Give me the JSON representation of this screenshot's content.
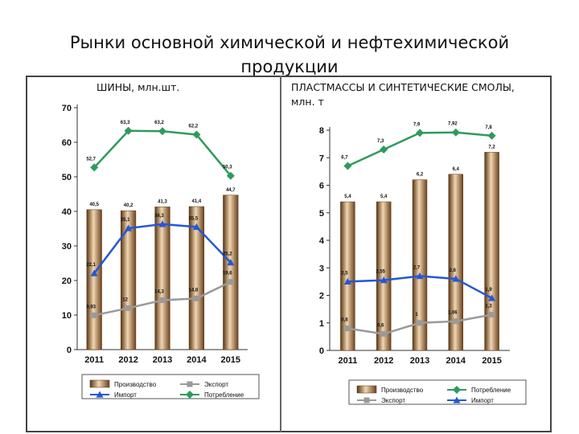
{
  "slide": {
    "title": "Рынки основной химической и нефтехимической продукции"
  },
  "chart_data": [
    {
      "type": "bar",
      "title": "ШИНЫ, млн.шт.",
      "categories": [
        "2011",
        "2012",
        "2013",
        "2014",
        "2015"
      ],
      "ylim": [
        0,
        70
      ],
      "yticks": [
        "0",
        "10",
        "20",
        "30",
        "40",
        "50",
        "60",
        "70"
      ],
      "grid": false,
      "legend_position": "bottom",
      "series": [
        {
          "name": "Производство",
          "kind": "bar",
          "color": "#8c5a2a",
          "values": [
            40.5,
            40.2,
            41.3,
            41.4,
            44.7
          ],
          "labels": [
            "40,5",
            "40,2",
            "41,3",
            "41,4",
            "44,7"
          ]
        },
        {
          "name": "Импорт",
          "kind": "line",
          "color": "#2457d6",
          "values": [
            22.1,
            35.1,
            36.3,
            35.5,
            25.2
          ],
          "labels": [
            "22,1",
            "35,1",
            "36,3",
            "35,5",
            "25,2"
          ]
        },
        {
          "name": "Экспорт",
          "kind": "line",
          "color": "#9a9a9a",
          "values": [
            9.93,
            12,
            14.3,
            14.8,
            19.6
          ],
          "labels": [
            "9,93",
            "12",
            "14,3",
            "14,8",
            "19,6"
          ]
        },
        {
          "name": "Потребление",
          "kind": "line",
          "color": "#2f9a5e",
          "values": [
            52.7,
            63.3,
            63.2,
            62.2,
            50.3
          ],
          "labels": [
            "52,7",
            "63,3",
            "63,2",
            "62,2",
            "50,3"
          ]
        }
      ]
    },
    {
      "type": "bar",
      "title": "ПЛАСТМАССЫ И СИНТЕТИЧЕСКИЕ СМОЛЫ, млн. т",
      "categories": [
        "2011",
        "2012",
        "2013",
        "2014",
        "2015"
      ],
      "ylim": [
        0,
        8
      ],
      "yticks": [
        "0",
        "1",
        "2",
        "3",
        "4",
        "5",
        "6",
        "7",
        "8"
      ],
      "grid": false,
      "legend_position": "bottom",
      "series": [
        {
          "name": "Производство",
          "kind": "bar",
          "color": "#8c5a2a",
          "values": [
            5.4,
            5.4,
            6.2,
            6.4,
            7.2
          ],
          "labels": [
            "5,4",
            "5,4",
            "6,2",
            "6,4",
            "7,2"
          ]
        },
        {
          "name": "Экспорт",
          "kind": "line",
          "color": "#9a9a9a",
          "values": [
            0.8,
            0.6,
            1,
            1.06,
            1.3
          ],
          "labels": [
            "0,8",
            "0,6",
            "1",
            "1,06",
            "1,3"
          ]
        },
        {
          "name": "Потребление",
          "kind": "line",
          "color": "#2f9a5e",
          "values": [
            6.7,
            7.3,
            7.9,
            7.92,
            7.8
          ],
          "labels": [
            "6,7",
            "7,3",
            "7,9",
            "7,92",
            "7,8"
          ]
        },
        {
          "name": "Импорт",
          "kind": "line",
          "color": "#2457d6",
          "values": [
            2.5,
            2.55,
            2.7,
            2.6,
            1.9
          ],
          "labels": [
            "2,5",
            "2,55",
            "2,7",
            "2,6",
            "1,9"
          ]
        }
      ]
    }
  ]
}
